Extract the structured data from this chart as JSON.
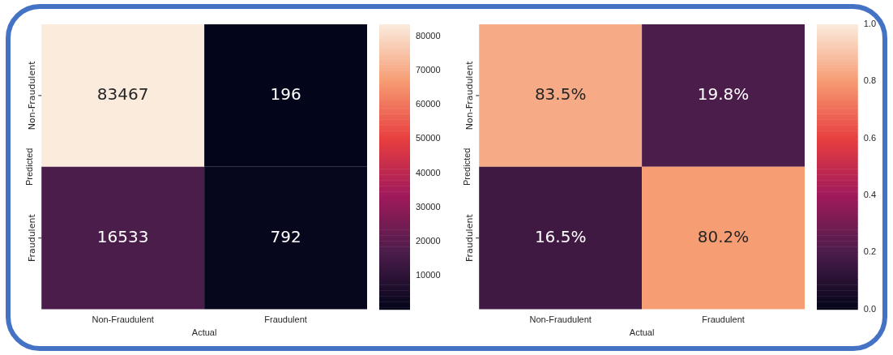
{
  "chart_data": [
    {
      "type": "heatmap",
      "xlabel": "Actual",
      "ylabel": "Predicted",
      "categories": [
        "Non-Fraudulent",
        "Fraudulent"
      ],
      "y_categories": [
        "Non-Fraudulent",
        "Fraudulent"
      ],
      "cells": [
        [
          83467,
          196
        ],
        [
          16533,
          792
        ]
      ],
      "cell_labels": [
        [
          "83467",
          "196"
        ],
        [
          "16533",
          "792"
        ]
      ],
      "clim": [
        196,
        83467
      ],
      "cticks": [
        10000,
        20000,
        30000,
        40000,
        50000,
        60000,
        70000,
        80000
      ]
    },
    {
      "type": "heatmap",
      "xlabel": "Actual",
      "ylabel": "Predicted",
      "categories": [
        "Non-Fraudulent",
        "Fraudulent"
      ],
      "y_categories": [
        "Non-Fraudulent",
        "Fraudulent"
      ],
      "cells": [
        [
          0.835,
          0.198
        ],
        [
          0.165,
          0.802
        ]
      ],
      "cell_labels": [
        [
          "83.5%",
          "19.8%"
        ],
        [
          "16.5%",
          "80.2%"
        ]
      ],
      "clim": [
        0,
        1
      ],
      "cticks": [
        {
          "value": 0,
          "label": "0.0"
        },
        0.2,
        0.4,
        0.6,
        0.8,
        {
          "value": 1,
          "label": "1.0"
        }
      ]
    }
  ]
}
